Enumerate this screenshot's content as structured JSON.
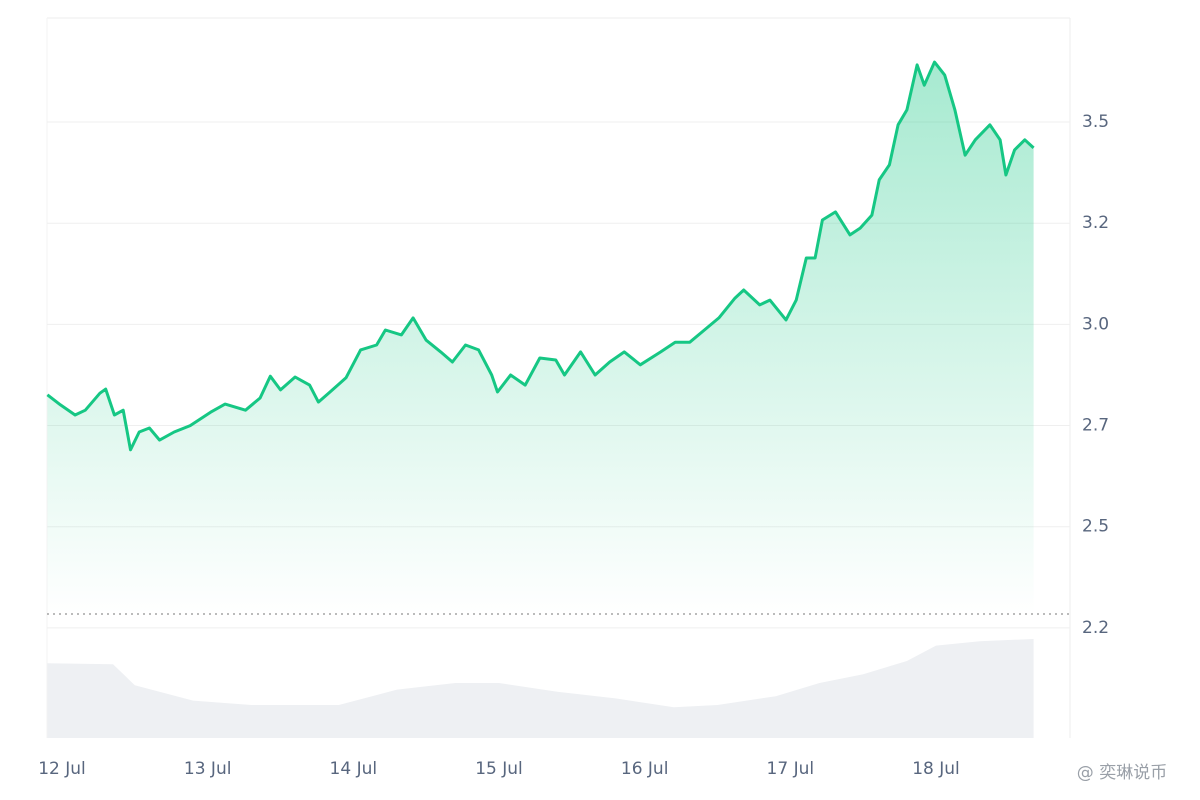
{
  "chart_data": [
    {
      "type": "line",
      "color": "#16c784",
      "x": [
        11.9,
        11.99,
        12.09,
        12.16,
        12.26,
        12.3,
        12.36,
        12.42,
        12.47,
        12.53,
        12.6,
        12.67,
        12.77,
        12.88,
        13.02,
        13.12,
        13.26,
        13.36,
        13.43,
        13.5,
        13.6,
        13.7,
        13.76,
        13.84,
        13.95,
        14.05,
        14.16,
        14.22,
        14.33,
        14.41,
        14.5,
        14.6,
        14.68,
        14.77,
        14.86,
        14.95,
        14.99,
        15.08,
        15.18,
        15.28,
        15.39,
        15.45,
        15.56,
        15.66,
        15.76,
        15.86,
        15.97,
        16.11,
        16.21,
        16.31,
        16.41,
        16.51,
        16.62,
        16.68,
        16.79,
        16.86,
        16.97,
        17.04,
        17.11,
        17.17,
        17.22,
        17.31,
        17.41,
        17.48,
        17.56,
        17.61,
        17.68,
        17.74,
        17.8,
        17.87,
        17.92,
        17.99,
        18.06,
        18.13,
        18.2,
        18.27,
        18.37,
        18.44,
        18.48,
        18.54,
        18.61,
        18.67
      ],
      "values": [
        2.776,
        2.751,
        2.726,
        2.738,
        2.78,
        2.79,
        2.726,
        2.738,
        2.64,
        2.684,
        2.694,
        2.664,
        2.684,
        2.7,
        2.733,
        2.753,
        2.738,
        2.768,
        2.822,
        2.788,
        2.82,
        2.8,
        2.758,
        2.783,
        2.818,
        2.887,
        2.899,
        2.936,
        2.924,
        2.966,
        2.911,
        2.882,
        2.857,
        2.899,
        2.887,
        2.825,
        2.783,
        2.825,
        2.8,
        2.867,
        2.862,
        2.825,
        2.882,
        2.825,
        2.857,
        2.882,
        2.85,
        2.882,
        2.906,
        2.906,
        2.936,
        2.966,
        3.015,
        3.035,
        2.998,
        3.01,
        2.961,
        3.01,
        3.114,
        3.114,
        3.208,
        3.228,
        3.171,
        3.188,
        3.22,
        3.307,
        3.344,
        3.443,
        3.48,
        3.591,
        3.541,
        3.598,
        3.566,
        3.48,
        3.368,
        3.406,
        3.443,
        3.406,
        3.319,
        3.381,
        3.406,
        3.386
      ],
      "xlim": [
        11.897,
        18.92
      ],
      "xticks": [
        {
          "value": 12,
          "label": "12 Jul"
        },
        {
          "value": 13,
          "label": "13 Jul"
        },
        {
          "value": 14,
          "label": "14 Jul"
        },
        {
          "value": 15,
          "label": "15 Jul"
        },
        {
          "value": 16,
          "label": "16 Jul"
        },
        {
          "value": 17,
          "label": "17 Jul"
        },
        {
          "value": 18,
          "label": "18 Jul"
        }
      ],
      "ylim": [
        1.928,
        3.707
      ],
      "yticks": [
        {
          "value": 3.45,
          "label": "3.5"
        },
        3.2,
        {
          "value": 2.95,
          "label": "3.0"
        },
        2.7,
        {
          "value": 2.45,
          "label": "2.5"
        },
        2.2
      ],
      "grid": true
    },
    {
      "type": "area",
      "color": "#eef0f3",
      "x": [
        11.9,
        12.35,
        12.5,
        12.9,
        13.3,
        13.9,
        14.3,
        14.7,
        15.0,
        15.4,
        15.8,
        16.2,
        16.5,
        16.9,
        17.2,
        17.5,
        17.8,
        18.0,
        18.3,
        18.67
      ],
      "values": [
        68,
        67,
        48,
        34,
        30,
        30,
        44,
        50,
        50,
        42,
        36,
        28,
        30,
        38,
        50,
        58,
        70,
        84,
        88,
        90
      ],
      "ylim": [
        0,
        100
      ]
    }
  ],
  "watermark": "@ 奕琳说币"
}
